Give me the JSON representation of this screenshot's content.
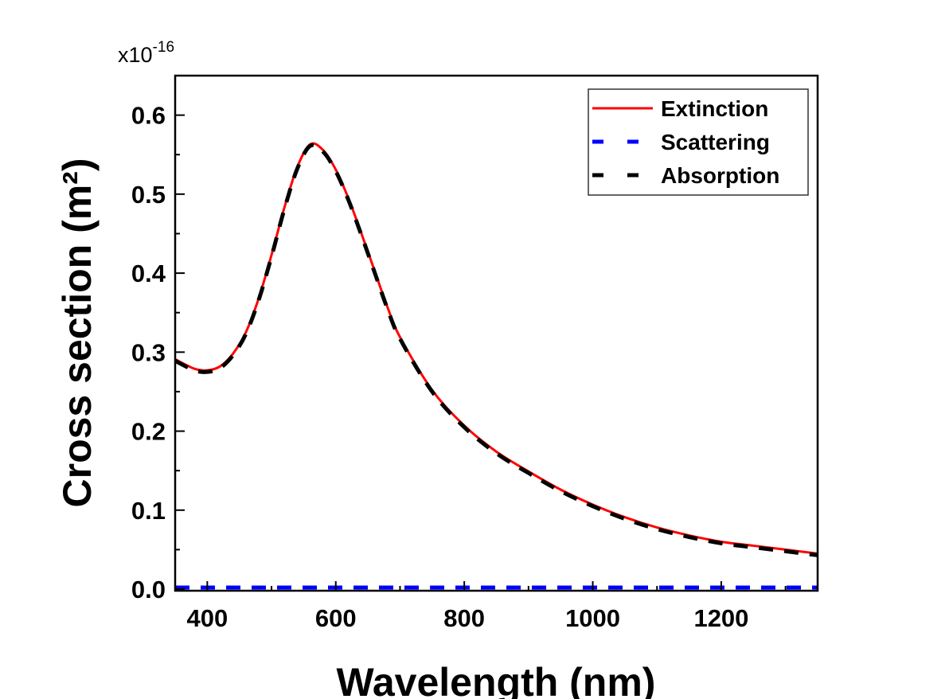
{
  "chart_data": {
    "type": "line",
    "xlabel": "Wavelength (nm)",
    "ylabel": "Cross section (m²)",
    "y_multiplier": {
      "base": "x10",
      "exponent": "-16"
    },
    "xlim": [
      350,
      1350
    ],
    "ylim": [
      -0.002,
      0.65
    ],
    "xticks": [
      "400",
      "600",
      "800",
      "1000",
      "1200"
    ],
    "xtick_values": [
      400,
      600,
      800,
      1000,
      1200
    ],
    "yticks": [
      "0.0",
      "0.1",
      "0.2",
      "0.3",
      "0.4",
      "0.5",
      "0.6"
    ],
    "ytick_values": [
      0,
      0.1,
      0.2,
      0.3,
      0.4,
      0.5,
      0.6
    ],
    "grid": false,
    "legend_position": "top-right",
    "x": [
      350,
      380,
      400,
      420,
      440,
      460,
      480,
      500,
      520,
      540,
      560,
      580,
      600,
      620,
      640,
      660,
      680,
      700,
      750,
      800,
      850,
      900,
      950,
      1000,
      1050,
      1100,
      1150,
      1200,
      1250,
      1300,
      1350
    ],
    "series": [
      {
        "name": "Extinction",
        "color": "#ff0000",
        "style": "solid",
        "values": [
          0.291,
          0.279,
          0.277,
          0.282,
          0.298,
          0.325,
          0.368,
          0.423,
          0.483,
          0.534,
          0.563,
          0.556,
          0.531,
          0.494,
          0.45,
          0.404,
          0.358,
          0.319,
          0.252,
          0.207,
          0.174,
          0.149,
          0.126,
          0.107,
          0.091,
          0.078,
          0.068,
          0.06,
          0.055,
          0.05,
          0.045
        ]
      },
      {
        "name": "Scattering",
        "color": "#0000ff",
        "style": "dashed",
        "values": [
          0.002,
          0.002,
          0.002,
          0.002,
          0.002,
          0.002,
          0.002,
          0.002,
          0.002,
          0.002,
          0.002,
          0.002,
          0.002,
          0.002,
          0.002,
          0.002,
          0.002,
          0.002,
          0.002,
          0.002,
          0.002,
          0.002,
          0.002,
          0.002,
          0.002,
          0.002,
          0.002,
          0.002,
          0.002,
          0.002,
          0.002
        ]
      },
      {
        "name": "Absorption",
        "color": "#000000",
        "style": "dashed",
        "values": [
          0.289,
          0.277,
          0.275,
          0.28,
          0.296,
          0.323,
          0.366,
          0.421,
          0.481,
          0.532,
          0.561,
          0.554,
          0.529,
          0.492,
          0.448,
          0.402,
          0.356,
          0.317,
          0.25,
          0.205,
          0.172,
          0.147,
          0.124,
          0.105,
          0.089,
          0.076,
          0.066,
          0.058,
          0.053,
          0.048,
          0.043
        ]
      }
    ]
  }
}
